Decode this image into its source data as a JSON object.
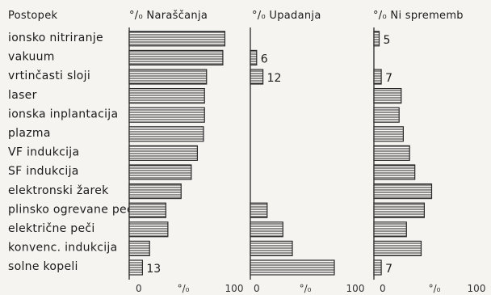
{
  "chart_data": {
    "type": "bar",
    "orientation": "horizontal",
    "category_header": "Postopek",
    "categories": [
      "ionsko nitriranje",
      "vakuum",
      "vrtinčasti sloji",
      "laser",
      "ionska inplantacija",
      "plazma",
      "VF indukcija",
      "SF indukcija",
      "elektronski žarek",
      "plinsko ogrevane peči",
      "električne peči",
      "konvenc. indukcija",
      "solne kopeli"
    ],
    "panels": [
      {
        "title": "°/₀ Naraščanja",
        "xlim": [
          0,
          100
        ],
        "tick_labels": [
          "0",
          "°/₀",
          "100"
        ],
        "values": [
          94,
          92,
          76,
          74,
          74,
          73,
          67,
          61,
          51,
          36,
          38,
          20,
          13
        ],
        "data_labels": {
          "12": "13"
        }
      },
      {
        "title": "°/₀ Upadanja",
        "xlim": [
          0,
          100
        ],
        "tick_labels": [
          "0",
          "°/₀",
          "100"
        ],
        "values": [
          0,
          6,
          12,
          0,
          0,
          0,
          0,
          0,
          0,
          16,
          31,
          40,
          80
        ],
        "data_labels": {
          "1": "6",
          "2": "12"
        }
      },
      {
        "title": "°/₀ Ni sprememb",
        "xlim": [
          0,
          100
        ],
        "tick_labels": [
          "0",
          "°/₀",
          "100"
        ],
        "values": [
          5,
          0,
          7,
          26,
          24,
          28,
          34,
          39,
          55,
          48,
          31,
          45,
          7
        ],
        "data_labels": {
          "0": "5",
          "2": "7",
          "12": "7"
        }
      }
    ]
  }
}
